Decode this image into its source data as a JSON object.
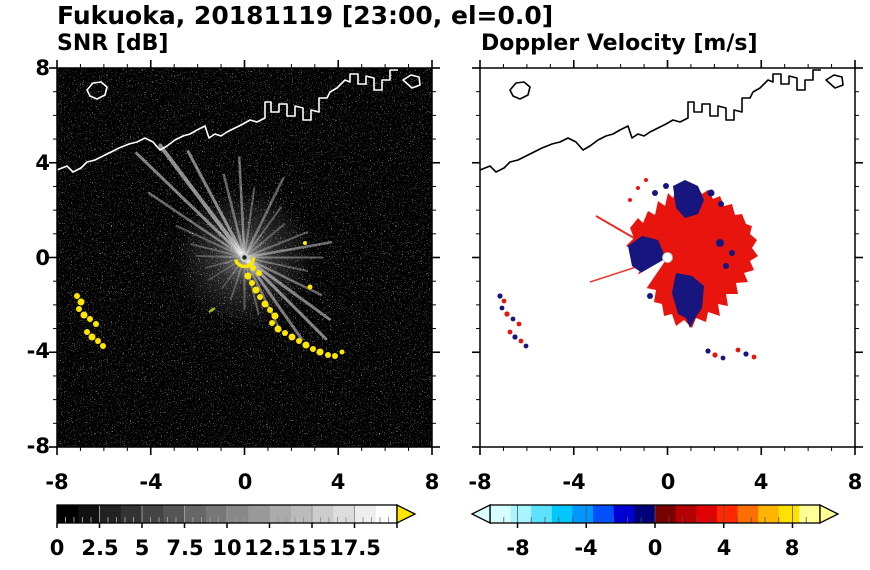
{
  "title": "Fukuoka, 20181119 [23:00, el=0.0]",
  "panels": [
    {
      "id": "snr",
      "title": "SNR [dB]",
      "x_tick_labels": [
        "-8",
        "-4",
        "0",
        "4",
        "8"
      ],
      "y_tick_labels": [
        "8",
        "4",
        "0",
        "-4",
        "-8"
      ],
      "axis_range": {
        "x": [
          -8,
          8
        ],
        "y": [
          -8,
          8
        ]
      },
      "colorbar": {
        "tick_labels": [
          "0",
          "2.5",
          "5",
          "7.5",
          "10",
          "12.5",
          "15",
          "17.5"
        ],
        "range": [
          0,
          20
        ],
        "colormap": "grayscale",
        "start_color": "#000000",
        "end_color": "#ffffff",
        "over_arrow_color": "#ffe600"
      }
    },
    {
      "id": "doppler",
      "title": "Doppler Velocity [m/s]",
      "x_tick_labels": [
        "-8",
        "-4",
        "0",
        "4",
        "8"
      ],
      "y_tick_labels": [],
      "axis_range": {
        "x": [
          -8,
          8
        ],
        "y": [
          -8,
          8
        ]
      },
      "colorbar": {
        "tick_labels": [
          "-8",
          "-4",
          "0",
          "4",
          "8"
        ],
        "range": [
          -9.6,
          9.6
        ],
        "colormap": "polar (cyan-blue-navy / darkred-red-orange-yellow)",
        "segment_colors": [
          "#d8ffff",
          "#a8f4ff",
          "#5ce2ff",
          "#00c8ff",
          "#0096ff",
          "#0050ff",
          "#0000d2",
          "#000078",
          "#780000",
          "#b40000",
          "#e10000",
          "#ff2800",
          "#ff6e00",
          "#ffb400",
          "#ffe100",
          "#ffff96"
        ],
        "under_arrow_color": "#d8ffff",
        "over_arrow_color": "#ffff96",
        "negative_echo_color": "#16167e",
        "positive_echo_color": "#e8150f"
      }
    }
  ],
  "chart_data": [
    {
      "type": "heatmap",
      "title": "SNR [dB]",
      "xlim": [
        -8,
        8
      ],
      "ylim": [
        -8,
        8
      ],
      "x_ticks": [
        -8,
        -4,
        0,
        4,
        8
      ],
      "y_ticks": [
        -8,
        -4,
        0,
        4,
        8
      ],
      "colorbar_ticks": [
        0,
        2.5,
        5,
        7.5,
        10,
        12.5,
        15,
        17.5
      ],
      "radar_location": [
        0,
        0
      ],
      "description": "Radar PPI scan (el=0.0 deg) on black background with faint speckle noise. Bright white radial spokes emanate from the radar at (0,0), strongest toward NW, N, NE, E and SE, reaching 2.5-5 units. High-SNR (yellow, >17.5 dB) echo chain curves from (0.3,-0.8) down-right to (3.5,-4.2); yellow clusters near (-7.1,-1.6)..(-6.3,-2.9) and (-6.7,-3.1)..(-6.0,-3.7); small yellow specks at (2.8,-1.2) and (2.6,0.6). White coastline of the bay crosses the upper part with blocky harbor piers near x=1..4, y=5..7.5 and an islet near (-6.5,7.2)."
    },
    {
      "type": "heatmap",
      "title": "Doppler Velocity [m/s]",
      "xlim": [
        -8,
        8
      ],
      "ylim": [
        -8,
        8
      ],
      "x_ticks": [
        -8,
        -4,
        0,
        4,
        8
      ],
      "y_ticks": [
        -8,
        -4,
        0,
        4,
        8
      ],
      "colorbar_ticks": [
        -8,
        -4,
        0,
        4,
        8
      ],
      "radar_location": [
        0,
        0
      ],
      "description": "Same scene on white background with black coastline. Irregular Doppler velocity field around the radar (white dot at 0,0) extending to ~3.5 units: mostly positive (red) velocities with dark-blue (negative) patches above center (~0.5,2.5), left of center (~-1,0.3), in a wedge below center (~0.8,-1.8), and small patches right of center. Small mixed red/blue distant echoes near (-7,-2), (-6.5,-3.4) and along (1.8,-3.9)..(3.8,-4.3)."
    }
  ]
}
